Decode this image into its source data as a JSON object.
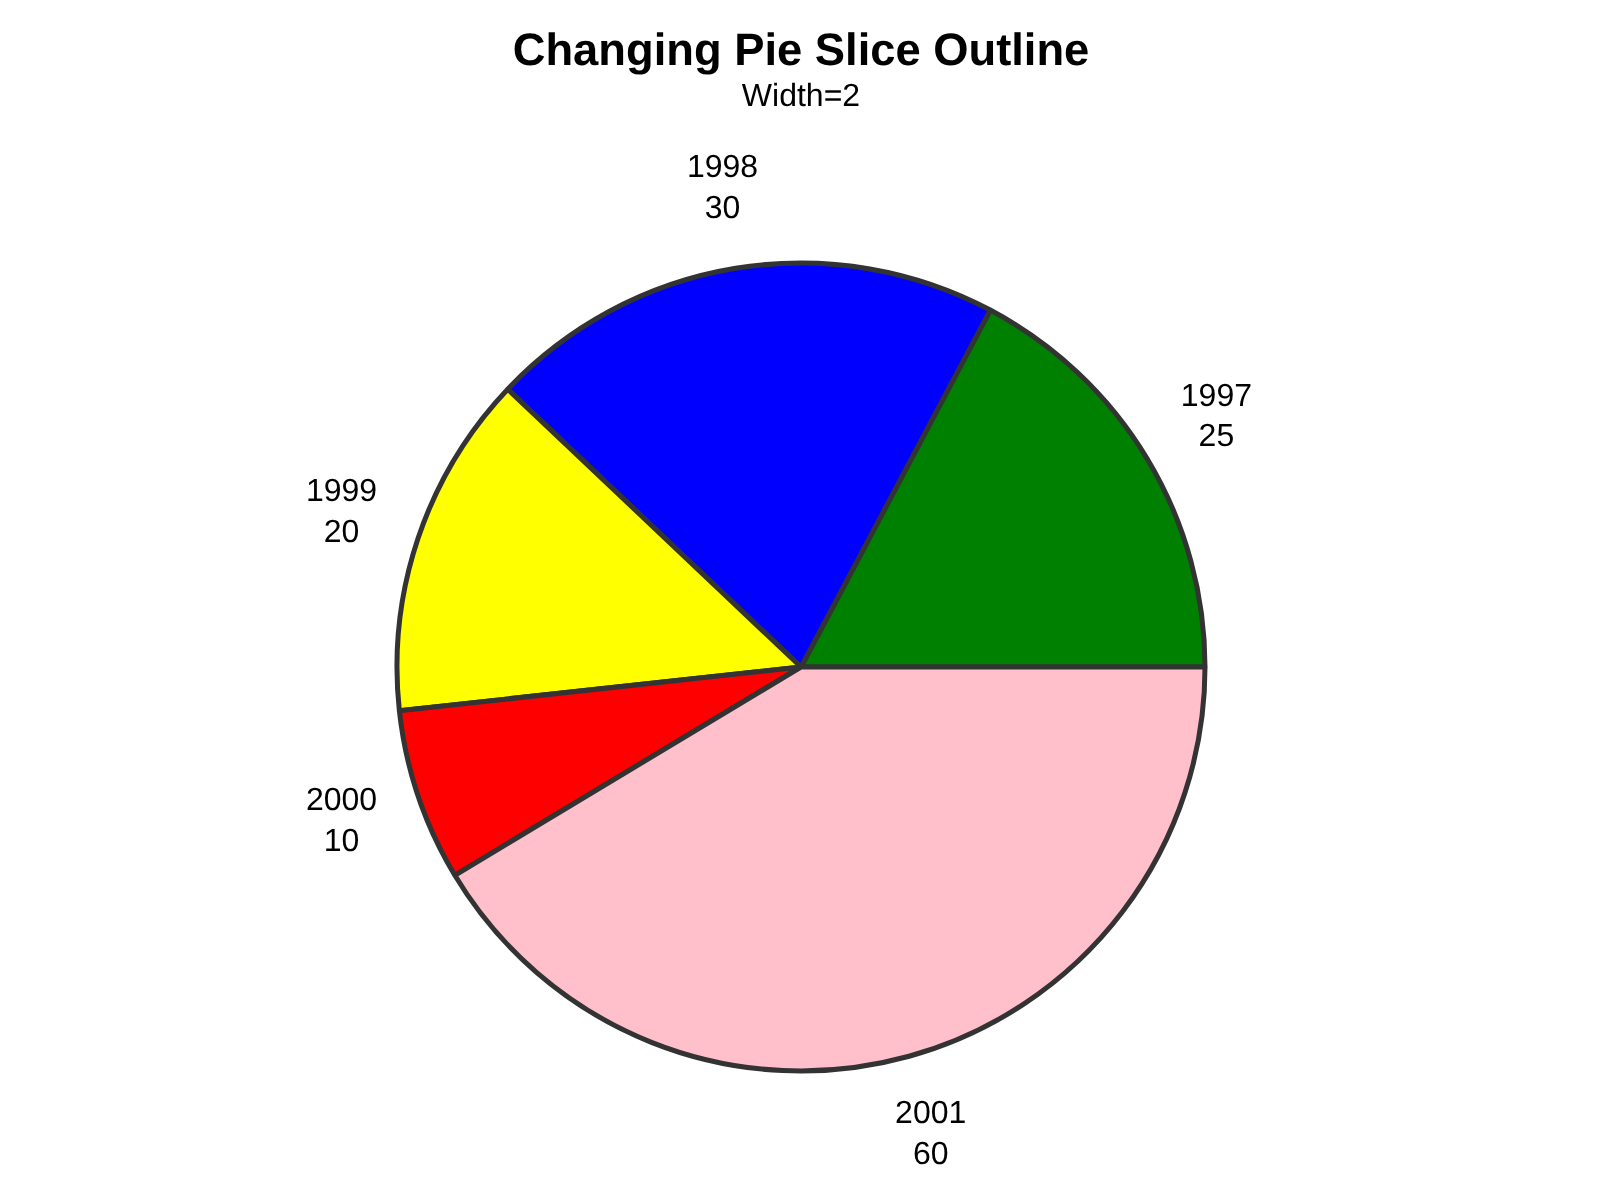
{
  "chart_data": {
    "type": "pie",
    "title": "Changing Pie Slice Outline",
    "subtitle": "Width=2",
    "categories": [
      "1997",
      "1998",
      "1999",
      "2000",
      "2001"
    ],
    "values": [
      25,
      30,
      20,
      10,
      60
    ],
    "colors": [
      "#008000",
      "#0000ff",
      "#ffff00",
      "#ff0000",
      "#ffc0cb"
    ],
    "data_labels": true
  }
}
